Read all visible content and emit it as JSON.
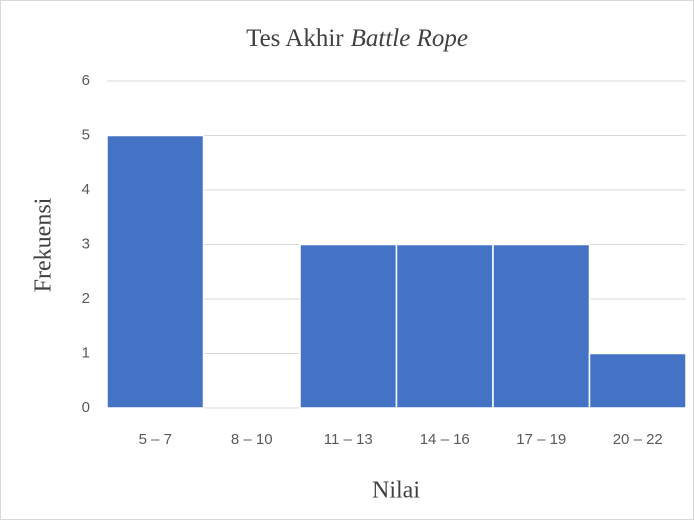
{
  "chart_data": {
    "type": "bar",
    "title": [
      "Tes Akhir",
      "Battle Rope"
    ],
    "x_label": "Nilai",
    "y_label": "Frekuensi",
    "categories": [
      "5 – 7",
      "8 – 10",
      "11 – 13",
      "14 – 16",
      "17 – 19",
      "20 – 22"
    ],
    "values": [
      5,
      0,
      3,
      3,
      3,
      1
    ],
    "color": "#4472c4",
    "ylim": [
      0,
      6
    ],
    "yticks": [
      0,
      1,
      2,
      3,
      4,
      5,
      6
    ],
    "grid": true
  }
}
